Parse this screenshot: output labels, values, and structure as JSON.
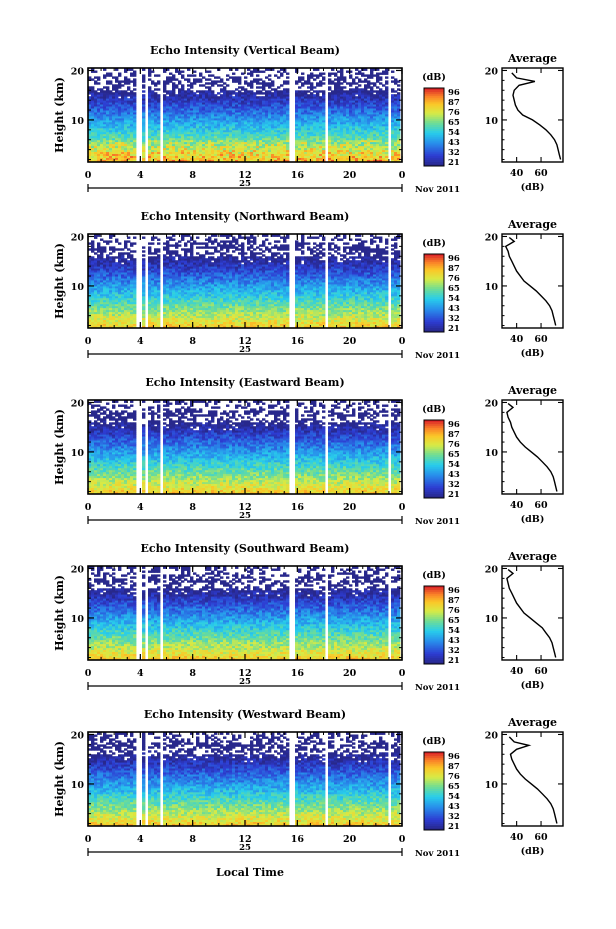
{
  "figure": {
    "x_axis_label": "Local Time",
    "date_label": "Nov 2011",
    "day_label": "25",
    "average_title": "Average",
    "cbar_unit": "(dB)",
    "avg_xlabel": "(dB)",
    "y_label": "Height (km)"
  },
  "chart_data": [
    {
      "type": "heatmap",
      "title": "Echo Intensity (Vertical Beam)",
      "xlabel": "",
      "ylabel": "Height (km)",
      "xticks": [
        "0",
        "4",
        "8",
        "12",
        "16",
        "20",
        "0"
      ],
      "xlim": [
        0,
        24
      ],
      "yticks": [
        "10",
        "20"
      ],
      "ylim": [
        1.5,
        20.5
      ],
      "colorbar_ticks": [
        "96",
        "87",
        "76",
        "65",
        "54",
        "43",
        "32",
        "21"
      ],
      "colorbar_unit": "(dB)",
      "data_gaps_hours": [
        [
          3.6,
          3.9
        ],
        [
          4.3,
          4.5
        ],
        [
          5.4,
          5.7
        ],
        [
          15.3,
          15.8
        ],
        [
          18.0,
          18.2
        ],
        [
          18.6,
          18.8
        ],
        [
          22.8,
          23.0
        ]
      ],
      "average_profile": {
        "title": "Average",
        "xlabel": "(dB)",
        "xticks": [
          "40",
          "60"
        ],
        "xlim": [
          28,
          78
        ],
        "height_km": [
          2,
          3,
          4,
          5,
          6,
          7,
          8,
          9,
          10,
          11,
          12,
          13,
          14,
          15,
          16,
          17,
          17.8,
          18.5,
          19.5
        ],
        "intensity_db": [
          76,
          75,
          74,
          73,
          71,
          68,
          64,
          59,
          53,
          45,
          41,
          39,
          38,
          37,
          38,
          42,
          55,
          40,
          36
        ]
      }
    },
    {
      "type": "heatmap",
      "title": "Echo Intensity (Northward Beam)",
      "xlabel": "",
      "ylabel": "Height (km)",
      "xticks": [
        "0",
        "4",
        "8",
        "12",
        "16",
        "20",
        "0"
      ],
      "xlim": [
        0,
        24
      ],
      "yticks": [
        "10",
        "20"
      ],
      "ylim": [
        1.5,
        20.5
      ],
      "colorbar_ticks": [
        "96",
        "87",
        "76",
        "65",
        "54",
        "43",
        "32",
        "21"
      ],
      "colorbar_unit": "(dB)",
      "data_gaps_hours": [
        [
          3.6,
          3.9
        ],
        [
          4.3,
          4.5
        ],
        [
          5.4,
          5.7
        ],
        [
          15.3,
          15.8
        ],
        [
          18.0,
          18.2
        ],
        [
          18.6,
          18.8
        ],
        [
          22.8,
          23.0
        ]
      ],
      "average_profile": {
        "title": "Average",
        "xlabel": "(dB)",
        "xticks": [
          "40",
          "60"
        ],
        "xlim": [
          28,
          78
        ],
        "height_km": [
          2,
          3,
          4,
          5,
          6,
          7,
          8,
          9,
          10,
          11,
          12,
          13,
          14,
          15,
          16,
          17,
          18,
          19,
          19.8
        ],
        "intensity_db": [
          72,
          71,
          70,
          69,
          67,
          64,
          60,
          56,
          51,
          46,
          43,
          40,
          38,
          36,
          34,
          33,
          31,
          38,
          34
        ]
      }
    },
    {
      "type": "heatmap",
      "title": "Echo Intensity (Eastward Beam)",
      "xlabel": "",
      "ylabel": "Height (km)",
      "xticks": [
        "0",
        "4",
        "8",
        "12",
        "16",
        "20",
        "0"
      ],
      "xlim": [
        0,
        24
      ],
      "yticks": [
        "10",
        "20"
      ],
      "ylim": [
        1.5,
        20.5
      ],
      "colorbar_ticks": [
        "96",
        "87",
        "76",
        "65",
        "54",
        "43",
        "32",
        "21"
      ],
      "colorbar_unit": "(dB)",
      "data_gaps_hours": [
        [
          3.6,
          3.9
        ],
        [
          4.3,
          4.5
        ],
        [
          5.4,
          5.7
        ],
        [
          15.3,
          15.8
        ],
        [
          18.0,
          18.2
        ],
        [
          18.6,
          18.8
        ],
        [
          22.8,
          23.0
        ]
      ],
      "average_profile": {
        "title": "Average",
        "xlabel": "(dB)",
        "xticks": [
          "40",
          "60"
        ],
        "xlim": [
          28,
          78
        ],
        "height_km": [
          2,
          3,
          4,
          5,
          6,
          7,
          8,
          9,
          10,
          11,
          12,
          13,
          14,
          15,
          16,
          17,
          18,
          19,
          19.8
        ],
        "intensity_db": [
          73,
          72,
          71,
          70,
          68,
          65,
          61,
          57,
          52,
          47,
          43,
          40,
          38,
          36,
          35,
          33,
          32,
          37,
          33
        ]
      }
    },
    {
      "type": "heatmap",
      "title": "Echo Intensity (Southward Beam)",
      "xlabel": "",
      "ylabel": "Height (km)",
      "xticks": [
        "0",
        "4",
        "8",
        "12",
        "16",
        "20",
        "0"
      ],
      "xlim": [
        0,
        24
      ],
      "yticks": [
        "10",
        "20"
      ],
      "ylim": [
        1.5,
        20.5
      ],
      "colorbar_ticks": [
        "96",
        "87",
        "76",
        "65",
        "54",
        "43",
        "32",
        "21"
      ],
      "colorbar_unit": "(dB)",
      "data_gaps_hours": [
        [
          3.6,
          3.9
        ],
        [
          4.3,
          4.5
        ],
        [
          5.4,
          5.7
        ],
        [
          15.3,
          15.8
        ],
        [
          18.0,
          18.2
        ],
        [
          18.6,
          18.8
        ],
        [
          22.8,
          23.0
        ]
      ],
      "average_profile": {
        "title": "Average",
        "xlabel": "(dB)",
        "xticks": [
          "40",
          "60"
        ],
        "xlim": [
          28,
          78
        ],
        "height_km": [
          2,
          3,
          4,
          5,
          6,
          7,
          8,
          9,
          10,
          11,
          12,
          13,
          14,
          15,
          16,
          17,
          18,
          19,
          19.8
        ],
        "intensity_db": [
          72,
          71,
          70,
          69,
          67,
          64,
          61,
          56,
          51,
          46,
          43,
          40,
          38,
          36,
          34,
          33,
          32,
          37,
          33
        ]
      }
    },
    {
      "type": "heatmap",
      "title": "Echo Intensity (Westward Beam)",
      "xlabel": "Local Time",
      "ylabel": "Height (km)",
      "xticks": [
        "0",
        "4",
        "8",
        "12",
        "16",
        "20",
        "0"
      ],
      "xlim": [
        0,
        24
      ],
      "yticks": [
        "10",
        "20"
      ],
      "ylim": [
        1.5,
        20.5
      ],
      "colorbar_ticks": [
        "96",
        "87",
        "76",
        "65",
        "54",
        "43",
        "32",
        "21"
      ],
      "colorbar_unit": "(dB)",
      "data_gaps_hours": [
        [
          3.6,
          3.9
        ],
        [
          4.3,
          4.5
        ],
        [
          5.4,
          5.7
        ],
        [
          15.3,
          15.8
        ],
        [
          18.0,
          18.2
        ],
        [
          18.6,
          18.8
        ],
        [
          22.8,
          23.0
        ]
      ],
      "average_profile": {
        "title": "Average",
        "xlabel": "(dB)",
        "xticks": [
          "40",
          "60"
        ],
        "xlim": [
          28,
          78
        ],
        "height_km": [
          2,
          3,
          4,
          5,
          6,
          7,
          8,
          9,
          10,
          11,
          12,
          13,
          14,
          15,
          16,
          17,
          17.8,
          18.5,
          19.5
        ],
        "intensity_db": [
          73,
          72,
          71,
          70,
          68,
          65,
          61,
          57,
          52,
          47,
          43,
          40,
          38,
          36,
          35,
          40,
          50,
          38,
          34
        ]
      }
    }
  ]
}
